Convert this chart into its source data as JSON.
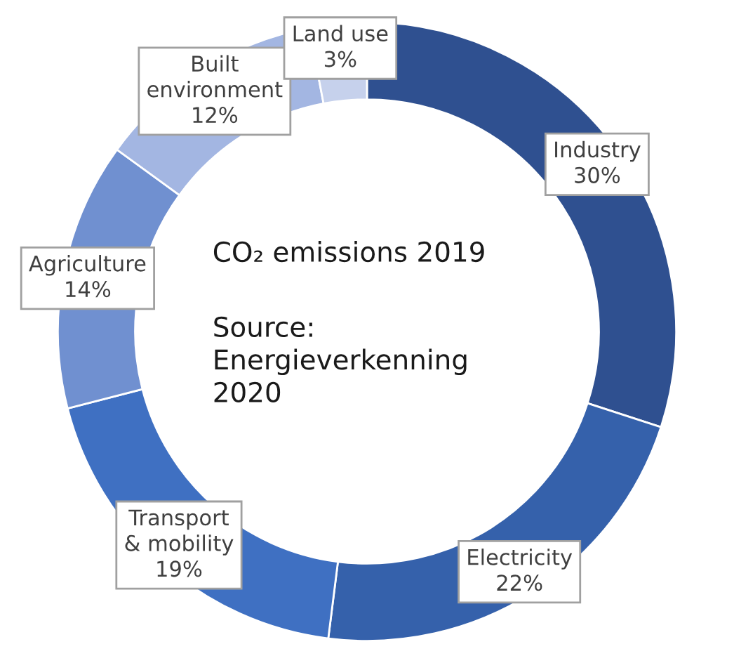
{
  "chart_data": {
    "type": "donut",
    "title": "CO₂ emissions 2019",
    "annotations": [
      "Source:\nEnergieverkenning\n2020"
    ],
    "categories": [
      "Industry",
      "Electricity",
      "Transport\n& mobility",
      "Agriculture",
      "Built\nenvironment",
      "Land use"
    ],
    "values": [
      30,
      22,
      19,
      14,
      12,
      3
    ],
    "colors": [
      "#2f5090",
      "#3561ab",
      "#3f70c2",
      "#7090d0",
      "#a3b6e2",
      "#c6d1ec"
    ],
    "value_labels": [
      "30%",
      "22%",
      "19%",
      "14%",
      "12%",
      "3%"
    ]
  }
}
